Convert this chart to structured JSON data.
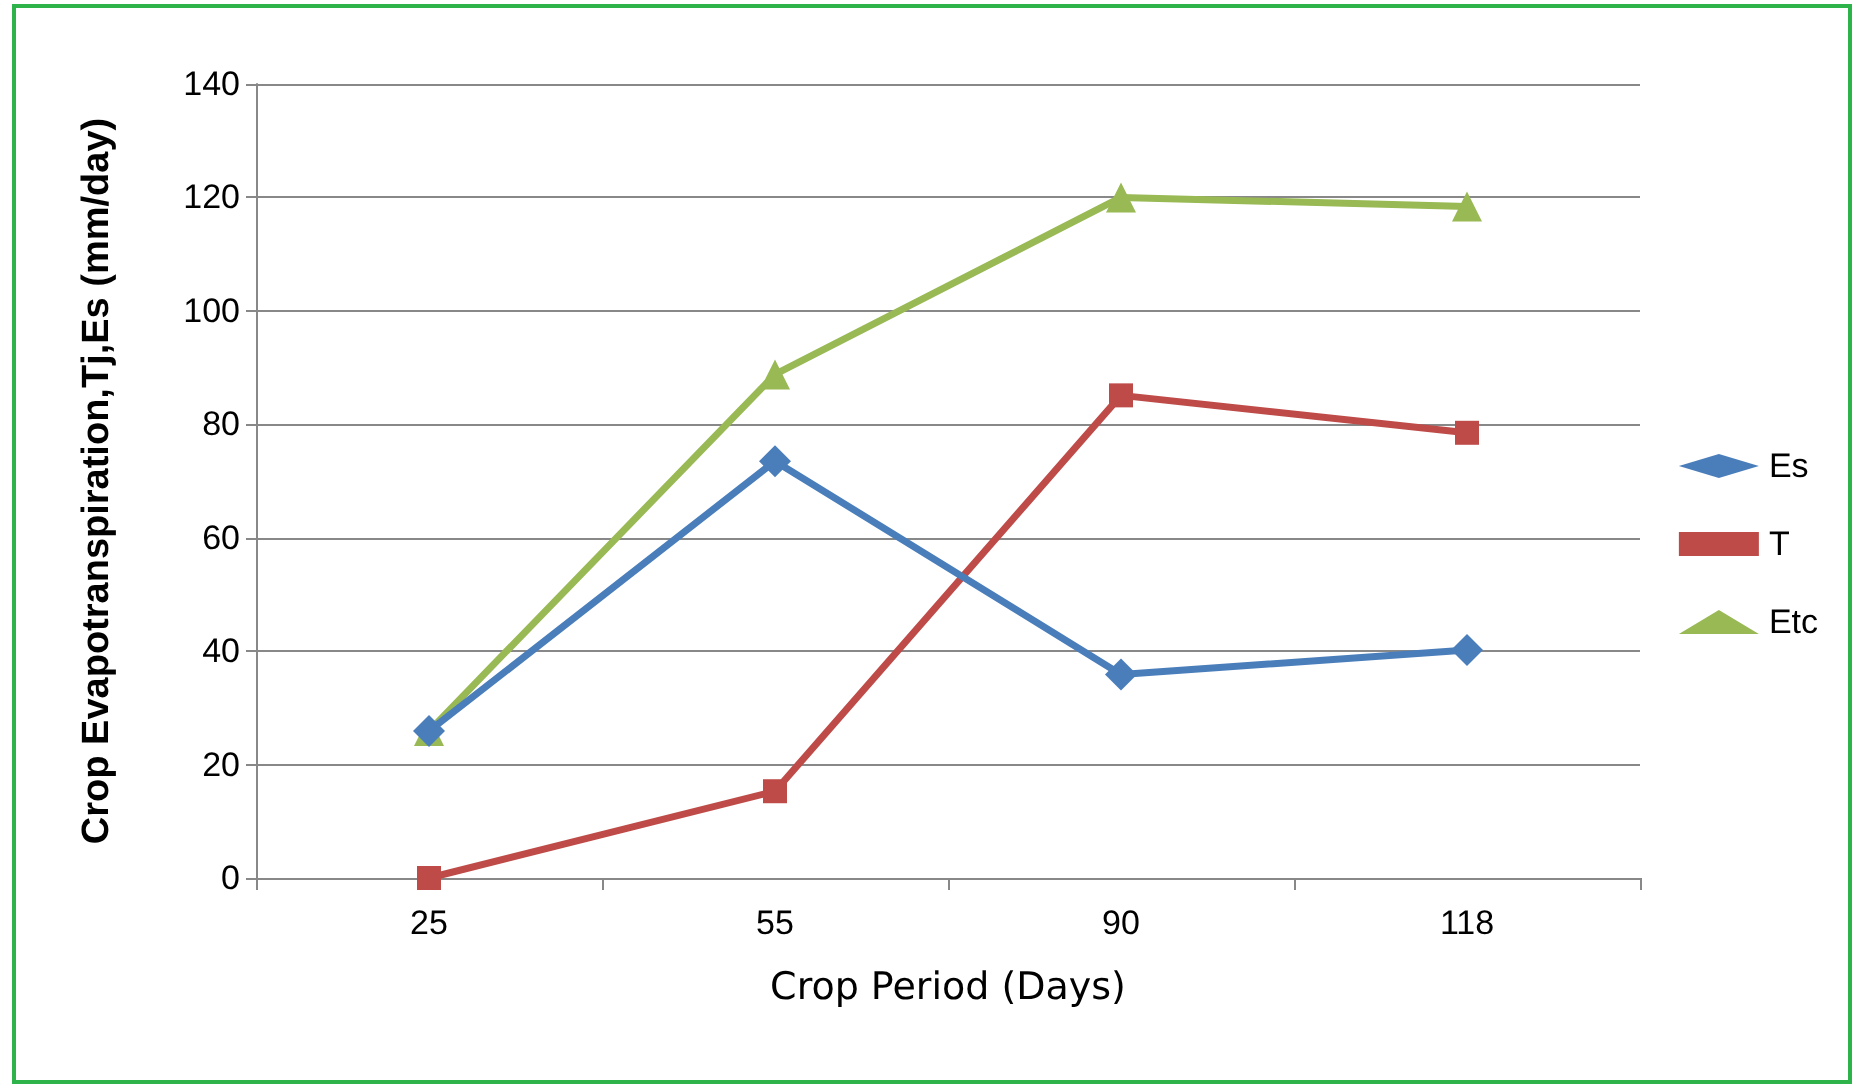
{
  "chart_data": {
    "type": "line",
    "xlabel": "Crop Period (Days)",
    "ylabel": "Crop Evapotranspiration,Tj,Es (mm/day)",
    "categories": [
      "25",
      "55",
      "90",
      "118"
    ],
    "series": [
      {
        "name": "Es",
        "color": "#4a7ebb",
        "marker": "diamond",
        "values": [
          25.9,
          73.5,
          35.9,
          40.2
        ]
      },
      {
        "name": "T",
        "color": "#be4b48",
        "marker": "square",
        "values": [
          0,
          15.3,
          85.1,
          78.5
        ]
      },
      {
        "name": "Etc",
        "color": "#98b954",
        "marker": "triangle",
        "values": [
          25.9,
          88.8,
          120,
          118.4
        ]
      }
    ],
    "ylim": [
      0,
      140
    ],
    "yticks": [
      0,
      20,
      40,
      60,
      80,
      100,
      120,
      140
    ],
    "grid": "y",
    "legend": "right",
    "line_style": "solid"
  }
}
